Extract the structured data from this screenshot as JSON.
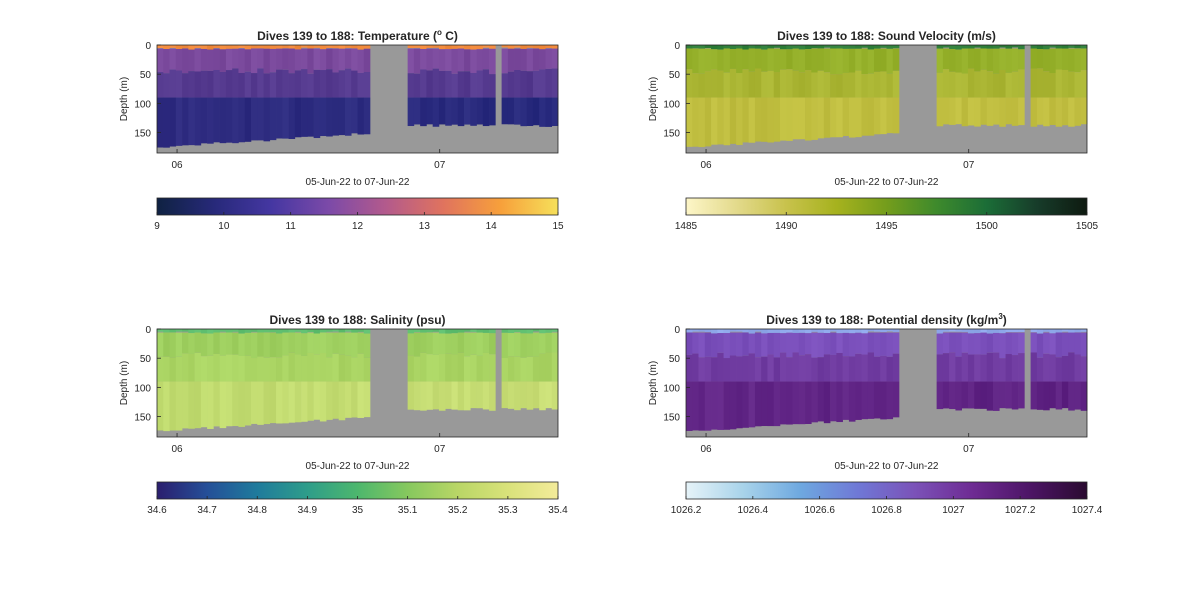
{
  "chart_data": [
    {
      "type": "heatmap",
      "title": "Dives 139 to 188: Temperature (",
      "title_sup": "o",
      "title_tail": " C)",
      "ylabel": "Depth (m)",
      "yticks": [
        "0",
        "50",
        "100",
        "150"
      ],
      "ylim": [
        0,
        185
      ],
      "y_reversed": true,
      "xlabel": "05-Jun-22 to 07-Jun-22",
      "xticks": [
        "06",
        "07"
      ],
      "colorbar_ticks": [
        "9",
        "10",
        "11",
        "12",
        "13",
        "14",
        "15"
      ],
      "colorbar_range": [
        9,
        15
      ],
      "colormap": [
        "#0f2242",
        "#27297a",
        "#4537a2",
        "#7c4aa8",
        "#b35a8c",
        "#e0735e",
        "#f7a03b",
        "#f6e05a"
      ],
      "surface_color": "#f28a3c",
      "upper_color": "#7b4a9d",
      "mid_color": "#3b2f86",
      "deep_color": "#22287a",
      "nodata_color": "#999999"
    },
    {
      "type": "heatmap",
      "title": "Dives 139 to 188: Sound Velocity (m/s)",
      "ylabel": "Depth (m)",
      "yticks": [
        "0",
        "50",
        "100",
        "150"
      ],
      "ylim": [
        0,
        185
      ],
      "y_reversed": true,
      "xlabel": "05-Jun-22 to 07-Jun-22",
      "xticks": [
        "06",
        "07"
      ],
      "colorbar_ticks": [
        "1485",
        "1490",
        "1495",
        "1500",
        "1505"
      ],
      "colorbar_range": [
        1485,
        1505
      ],
      "colormap": [
        "#fdf6c8",
        "#e3da8c",
        "#c8c24c",
        "#a6b21e",
        "#749d1c",
        "#3e8a2c",
        "#1b6d37",
        "#173c2a",
        "#0e1a10"
      ],
      "surface_color": "#2f7f3a",
      "upper_color": "#95b02a",
      "mid_color": "#b9ba3a",
      "deep_color": "#c6c245",
      "nodata_color": "#999999"
    },
    {
      "type": "heatmap",
      "title": "Dives 139 to 188: Salinity (psu)",
      "ylabel": "Depth (m)",
      "yticks": [
        "0",
        "50",
        "100",
        "150"
      ],
      "ylim": [
        0,
        185
      ],
      "y_reversed": true,
      "xlabel": "05-Jun-22 to 07-Jun-22",
      "xticks": [
        "06",
        "07"
      ],
      "colorbar_ticks": [
        "34.6",
        "34.7",
        "34.8",
        "34.9",
        "35",
        "35.1",
        "35.2",
        "35.3",
        "35.4"
      ],
      "colorbar_range": [
        34.6,
        35.4
      ],
      "colormap": [
        "#2b1e6e",
        "#254f98",
        "#1f7b9c",
        "#2e9d8a",
        "#4db76d",
        "#86c85e",
        "#b9d666",
        "#d9e27a",
        "#f3eb9a"
      ],
      "surface_color": "#5fbf70",
      "upper_color": "#9fd060",
      "mid_color": "#b2d765",
      "deep_color": "#cfe07a",
      "nodata_color": "#999999"
    },
    {
      "type": "heatmap",
      "title": "Dives 139 to 188: Potential density (kg/m",
      "title_sup": "3",
      "title_tail": ")",
      "ylabel": "Depth (m)",
      "yticks": [
        "0",
        "50",
        "100",
        "150"
      ],
      "ylim": [
        0,
        185
      ],
      "y_reversed": true,
      "xlabel": "05-Jun-22 to 07-Jun-22",
      "xticks": [
        "06",
        "07"
      ],
      "colorbar_ticks": [
        "1026.2",
        "1026.4",
        "1026.6",
        "1026.8",
        "1027",
        "1027.2",
        "1027.4"
      ],
      "colorbar_range": [
        1026.2,
        1027.4
      ],
      "colormap": [
        "#e6f3f8",
        "#a8d3ea",
        "#6ea8e0",
        "#6f78d6",
        "#7b52b8",
        "#6e2b93",
        "#4d1566",
        "#2a0a30"
      ],
      "surface_color": "#8fa8ea",
      "upper_color": "#7a4fbb",
      "mid_color": "#6a2f90",
      "deep_color": "#5a1e7e",
      "nodata_color": "#999999"
    }
  ]
}
